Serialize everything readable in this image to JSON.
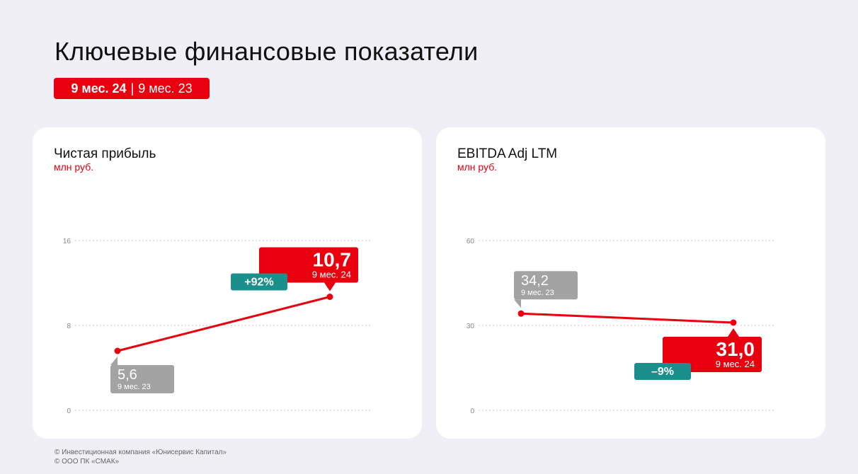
{
  "title": "Ключевые финансовые показатели",
  "period_badge": {
    "current": "9 мес. 24",
    "separator": "|",
    "previous": "9 мес. 23"
  },
  "colors": {
    "accent": "#e8000e",
    "gray": "#a3a3a3",
    "teal": "#1a8f8c",
    "background": "#efeff5"
  },
  "chart_data": [
    {
      "type": "line",
      "title": "Чистая прибыль",
      "unit": "млн руб.",
      "ylim": [
        0,
        16
      ],
      "y_ticks": [
        0,
        8,
        16
      ],
      "grid": true,
      "points": [
        {
          "period": "9 мес. 23",
          "value": 5.6,
          "label": "5,6",
          "style": "previous"
        },
        {
          "period": "9 мес. 24",
          "value": 10.7,
          "label": "10,7",
          "style": "current"
        }
      ],
      "change": "+92%",
      "change_color": "#1a8f8c"
    },
    {
      "type": "line",
      "title": "EBITDA Adj LTM",
      "unit": "млн руб.",
      "ylim": [
        0,
        60
      ],
      "y_ticks": [
        0,
        30,
        60
      ],
      "grid": true,
      "points": [
        {
          "period": "9 мес. 23",
          "value": 34.2,
          "label": "34,2",
          "style": "previous"
        },
        {
          "period": "9 мес. 24",
          "value": 31.0,
          "label": "31,0",
          "style": "current"
        }
      ],
      "change": "–9%",
      "change_color": "#1a8f8c"
    }
  ],
  "footer": [
    "© Инвестиционная компания «Юнисервис Капитал»",
    "© ООО ПК «СМАК»"
  ]
}
